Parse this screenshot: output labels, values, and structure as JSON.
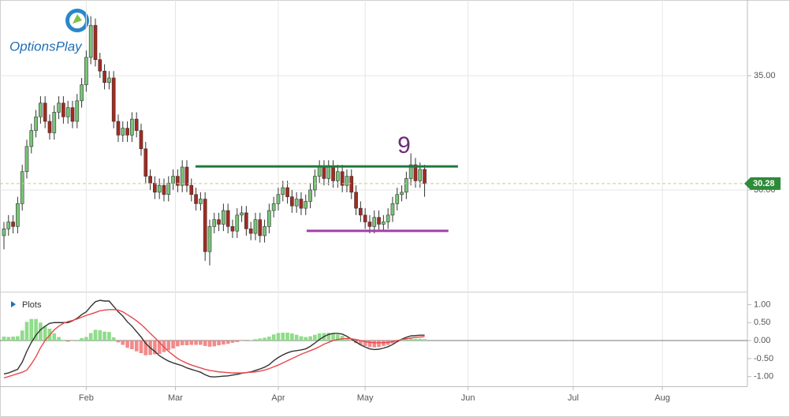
{
  "logo": "OptionsPlay",
  "chart_data": {
    "type": "candlestick",
    "xlim": [
      -0.86,
      162.6
    ],
    "xticks": [
      {
        "value": 18,
        "label": "Feb"
      },
      {
        "value": 37.5,
        "label": "Mar"
      },
      {
        "value": 60,
        "label": "Apr"
      },
      {
        "value": 79,
        "label": "May"
      },
      {
        "value": 101.5,
        "label": "Jun"
      },
      {
        "value": 124.5,
        "label": "Jul"
      },
      {
        "value": 144,
        "label": "Aug"
      }
    ],
    "ylim": [
      25.55,
      38.31
    ],
    "yticks": [
      {
        "value": 30,
        "label": "30.00"
      },
      {
        "value": 35,
        "label": "35.00"
      }
    ],
    "grid": true,
    "up_color": "#78c478",
    "down_color": "#a42a1f",
    "open": [
      28.0,
      28.3,
      28.6,
      28.4,
      29.4,
      30.8,
      31.9,
      32.6,
      33.2,
      33.8,
      33.0,
      32.5,
      33.4,
      33.8,
      33.2,
      33.6,
      33.0,
      33.9,
      34.6,
      35.8,
      37.2,
      35.7,
      35.2,
      34.7,
      34.9,
      33.0,
      32.4,
      32.7,
      32.4,
      33.1,
      32.6,
      31.8,
      30.6,
      30.3,
      29.9,
      30.2,
      29.8,
      30.3,
      30.6,
      30.2,
      31.0,
      30.2,
      29.8,
      29.4,
      29.6,
      27.3,
      28.4,
      28.7,
      28.5,
      29.1,
      28.4,
      28.2,
      28.9,
      29.0,
      28.3,
      28.1,
      28.7,
      28.0,
      28.4,
      29.1,
      29.4,
      29.8,
      30.1,
      29.7,
      29.3,
      29.6,
      29.2,
      29.5,
      30.0,
      30.6,
      31.0,
      30.5,
      31.0,
      30.4,
      30.8,
      30.2,
      30.6,
      29.9,
      29.2,
      28.9,
      28.6,
      28.4,
      28.8,
      28.5,
      28.6,
      28.9,
      29.4,
      29.8,
      29.9,
      30.5,
      31.1,
      30.4,
      30.9
    ],
    "high": [
      28.6,
      28.9,
      28.9,
      29.7,
      31.1,
      32.2,
      32.9,
      33.5,
      34.1,
      34.1,
      33.3,
      33.7,
      34.1,
      34.1,
      33.9,
      33.9,
      34.2,
      34.9,
      36.1,
      37.6,
      37.5,
      36.0,
      35.5,
      35.2,
      35.2,
      33.3,
      33.0,
      33.0,
      33.4,
      33.4,
      32.9,
      32.1,
      30.9,
      30.6,
      30.5,
      30.5,
      30.6,
      30.9,
      30.9,
      31.3,
      31.3,
      30.5,
      30.1,
      29.9,
      29.9,
      28.7,
      29.0,
      29.0,
      29.4,
      29.4,
      28.7,
      29.2,
      29.3,
      29.3,
      28.6,
      29.0,
      29.0,
      28.7,
      29.4,
      29.7,
      30.1,
      30.4,
      30.4,
      30.0,
      29.9,
      29.9,
      29.8,
      30.3,
      30.9,
      31.3,
      31.3,
      31.3,
      31.3,
      31.1,
      31.1,
      30.9,
      30.9,
      30.2,
      29.5,
      29.2,
      28.9,
      29.1,
      29.1,
      28.9,
      29.2,
      29.7,
      30.1,
      30.2,
      30.8,
      31.6,
      31.4,
      31.2,
      31.1
    ],
    "low": [
      27.4,
      28.0,
      28.1,
      28.1,
      29.1,
      30.5,
      31.6,
      32.3,
      32.9,
      32.7,
      32.2,
      32.2,
      33.1,
      32.9,
      32.9,
      32.7,
      32.7,
      33.6,
      34.3,
      35.5,
      35.4,
      34.9,
      34.4,
      34.4,
      32.7,
      32.1,
      32.1,
      32.1,
      32.1,
      32.3,
      31.5,
      30.3,
      30.0,
      29.6,
      29.6,
      29.5,
      29.5,
      30.0,
      29.9,
      29.9,
      29.9,
      29.5,
      29.1,
      29.1,
      26.9,
      26.7,
      28.1,
      28.2,
      28.2,
      28.1,
      27.9,
      27.9,
      28.6,
      28.0,
      27.8,
      27.8,
      27.7,
      27.7,
      28.1,
      28.8,
      29.1,
      29.5,
      29.4,
      29.0,
      29.0,
      28.9,
      28.9,
      29.2,
      29.7,
      30.3,
      30.2,
      30.2,
      30.1,
      30.1,
      29.9,
      29.9,
      29.6,
      28.9,
      28.6,
      28.3,
      28.1,
      28.1,
      28.2,
      28.2,
      28.3,
      28.6,
      29.1,
      29.5,
      29.6,
      30.2,
      30.1,
      30.1,
      29.7
    ],
    "close": [
      28.3,
      28.6,
      28.4,
      29.4,
      30.8,
      31.9,
      32.6,
      33.2,
      33.8,
      33.0,
      32.5,
      33.4,
      33.8,
      33.2,
      33.6,
      33.0,
      33.9,
      34.6,
      35.8,
      37.2,
      35.7,
      35.2,
      34.7,
      34.9,
      33.0,
      32.4,
      32.7,
      32.4,
      33.1,
      32.6,
      31.8,
      30.6,
      30.3,
      29.9,
      30.2,
      29.8,
      30.3,
      30.6,
      30.2,
      31.0,
      30.2,
      29.8,
      29.4,
      29.6,
      27.3,
      28.4,
      28.7,
      28.5,
      29.1,
      28.4,
      28.2,
      28.9,
      29.0,
      28.3,
      28.1,
      28.7,
      28.0,
      28.4,
      29.1,
      29.4,
      29.8,
      30.1,
      29.7,
      29.3,
      29.6,
      29.2,
      29.5,
      30.0,
      30.6,
      31.0,
      30.5,
      31.0,
      30.4,
      30.8,
      30.2,
      30.6,
      29.9,
      29.2,
      28.9,
      28.6,
      28.4,
      28.8,
      28.5,
      28.6,
      28.9,
      29.4,
      29.8,
      29.9,
      30.5,
      31.1,
      30.4,
      30.9,
      30.28
    ],
    "price_line": {
      "value": 30.28,
      "color": "#2e8b3a"
    },
    "lines": [
      {
        "x": [
          41.9,
          99.3
        ],
        "y": [
          31.03,
          31.03
        ],
        "color": "#1e7a3c"
      },
      {
        "x": [
          66.2,
          97.2
        ],
        "y": [
          28.21,
          28.21
        ],
        "color": "#a23fa6"
      }
    ],
    "annotations": [
      {
        "text": "9",
        "x": 87.5,
        "y": 31.9,
        "color": "#6e2a78"
      }
    ],
    "indicator": {
      "type": "macd",
      "title": "Plots",
      "ylim": [
        -1.27,
        1.36
      ],
      "yticks": [
        {
          "value": -1,
          "label": "-1.00"
        },
        {
          "value": -0.5,
          "label": "-0.50"
        },
        {
          "value": 0,
          "label": "0.00"
        },
        {
          "value": 0.5,
          "label": "0.50"
        },
        {
          "value": 1,
          "label": "1.00"
        }
      ],
      "zero_line": true,
      "series": [
        {
          "color": "#333333",
          "values": [
            -0.93,
            -0.9,
            -0.85,
            -0.8,
            -0.6,
            -0.3,
            -0.05,
            0.15,
            0.3,
            0.4,
            0.48,
            0.5,
            0.5,
            0.5,
            0.5,
            0.55,
            0.62,
            0.72,
            0.8,
            0.95,
            1.08,
            1.12,
            1.1,
            1.1,
            0.95,
            0.8,
            0.68,
            0.52,
            0.4,
            0.25,
            0.1,
            -0.08,
            -0.2,
            -0.3,
            -0.42,
            -0.5,
            -0.57,
            -0.62,
            -0.66,
            -0.7,
            -0.76,
            -0.8,
            -0.84,
            -0.88,
            -0.95,
            -1.0,
            -1.01,
            -1.0,
            -0.99,
            -0.98,
            -0.96,
            -0.94,
            -0.91,
            -0.89,
            -0.87,
            -0.83,
            -0.79,
            -0.74,
            -0.67,
            -0.56,
            -0.47,
            -0.4,
            -0.34,
            -0.3,
            -0.28,
            -0.26,
            -0.23,
            -0.16,
            -0.07,
            0.03,
            0.11,
            0.17,
            0.2,
            0.2,
            0.18,
            0.12,
            0.04,
            -0.04,
            -0.12,
            -0.18,
            -0.23,
            -0.25,
            -0.24,
            -0.21,
            -0.17,
            -0.11,
            -0.03,
            0.04,
            0.09,
            0.13,
            0.14,
            0.15,
            0.15
          ]
        },
        {
          "color": "#e8474a",
          "values": [
            -1.04,
            -1.0,
            -0.96,
            -0.92,
            -0.88,
            -0.82,
            -0.65,
            -0.45,
            -0.2,
            0.0,
            0.15,
            0.3,
            0.4,
            0.48,
            0.53,
            0.56,
            0.6,
            0.65,
            0.7,
            0.74,
            0.78,
            0.83,
            0.85,
            0.86,
            0.86,
            0.85,
            0.8,
            0.72,
            0.64,
            0.55,
            0.45,
            0.33,
            0.2,
            0.08,
            -0.05,
            -0.18,
            -0.3,
            -0.4,
            -0.5,
            -0.57,
            -0.63,
            -0.68,
            -0.72,
            -0.76,
            -0.8,
            -0.83,
            -0.85,
            -0.87,
            -0.88,
            -0.89,
            -0.9,
            -0.9,
            -0.9,
            -0.89,
            -0.88,
            -0.87,
            -0.85,
            -0.82,
            -0.78,
            -0.73,
            -0.68,
            -0.62,
            -0.56,
            -0.5,
            -0.44,
            -0.38,
            -0.33,
            -0.28,
            -0.23,
            -0.17,
            -0.1,
            -0.05,
            0.0,
            0.03,
            0.05,
            0.06,
            0.05,
            0.03,
            0.0,
            -0.03,
            -0.05,
            -0.06,
            -0.06,
            -0.06,
            -0.05,
            -0.03,
            0.0,
            0.03,
            0.05,
            0.07,
            0.09,
            0.1,
            0.11
          ]
        }
      ],
      "histogram": {
        "up_color": "#8fdc8a",
        "down_color": "#f28a8a",
        "values": [
          0.11,
          0.1,
          0.11,
          0.12,
          0.28,
          0.52,
          0.6,
          0.6,
          0.5,
          0.4,
          0.33,
          0.2,
          0.1,
          0.02,
          -0.03,
          -0.01,
          0.02,
          0.07,
          0.1,
          0.21,
          0.3,
          0.29,
          0.25,
          0.24,
          0.09,
          -0.05,
          -0.12,
          -0.2,
          -0.24,
          -0.3,
          -0.35,
          -0.41,
          -0.4,
          -0.38,
          -0.37,
          -0.32,
          -0.27,
          -0.22,
          -0.16,
          -0.13,
          -0.13,
          -0.12,
          -0.12,
          -0.12,
          -0.15,
          -0.17,
          -0.16,
          -0.13,
          -0.11,
          -0.09,
          -0.06,
          -0.04,
          -0.01,
          0.0,
          0.01,
          0.04,
          0.06,
          0.08,
          0.11,
          0.17,
          0.21,
          0.22,
          0.22,
          0.2,
          0.16,
          0.12,
          0.1,
          0.12,
          0.16,
          0.2,
          0.21,
          0.22,
          0.2,
          0.17,
          0.13,
          0.06,
          -0.01,
          -0.07,
          -0.12,
          -0.15,
          -0.18,
          -0.19,
          -0.18,
          -0.15,
          -0.12,
          -0.08,
          -0.03,
          0.01,
          0.04,
          0.06,
          0.05,
          0.05,
          0.04
        ]
      }
    }
  }
}
